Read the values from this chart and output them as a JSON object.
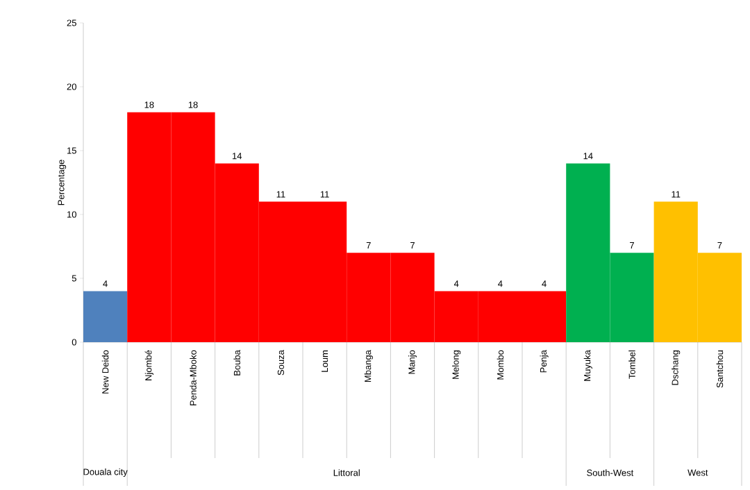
{
  "chart_data": {
    "type": "bar",
    "ylabel": "Percentage",
    "categories": [
      "New Deido",
      "Njombé",
      "Penda-Mboko",
      "Bouba",
      "Souza",
      "Loum",
      "Mbanga",
      "Manjo",
      "Melong",
      "Mombo",
      "Penja",
      "Muyuka",
      "Tombel",
      "Dschang",
      "Santchou"
    ],
    "values": [
      4,
      18,
      18,
      14,
      11,
      11,
      7,
      7,
      4,
      4,
      4,
      14,
      7,
      11,
      7
    ],
    "colors": [
      "#4f81bd",
      "#ff0000",
      "#ff0000",
      "#ff0000",
      "#ff0000",
      "#ff0000",
      "#ff0000",
      "#ff0000",
      "#ff0000",
      "#ff0000",
      "#ff0000",
      "#00b050",
      "#00b050",
      "#ffc000",
      "#ffc000"
    ],
    "ylim": [
      0,
      25
    ],
    "yticks": [
      0,
      5,
      10,
      15,
      20,
      25
    ],
    "data_labels": true,
    "grid": false,
    "annotations": [
      "Douala city",
      "Littoral",
      "South-West",
      "West"
    ]
  }
}
